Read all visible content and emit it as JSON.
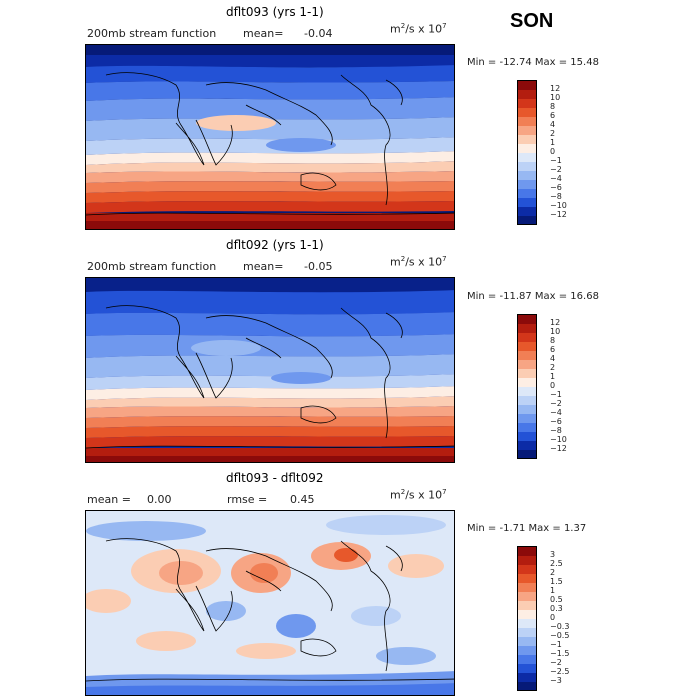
{
  "season": "SON",
  "panels": [
    {
      "title": "dflt093 (yrs 1-1)",
      "left_label": "200mb stream function",
      "mean_label": "mean=",
      "mean_value": "-0.04",
      "unit_base": "m",
      "unit_mid": "/s x 10",
      "unit_exp1": "2",
      "unit_exp2": "7",
      "min_max": "Min = -12.74 Max =   15.48",
      "ticks": [
        "12",
        "10",
        "8",
        "6",
        "4",
        "2",
        "1",
        "0",
        "−1",
        "−2",
        "−4",
        "−6",
        "−8",
        "−10",
        "−12"
      ]
    },
    {
      "title": "dflt092 (yrs 1-1)",
      "left_label": "200mb stream function",
      "mean_label": "mean=",
      "mean_value": "-0.05",
      "unit_base": "m",
      "unit_mid": "/s x 10",
      "unit_exp1": "2",
      "unit_exp2": "7",
      "min_max": "Min = -11.87 Max =   16.68",
      "ticks": [
        "12",
        "10",
        "8",
        "6",
        "4",
        "2",
        "1",
        "0",
        "−1",
        "−2",
        "−4",
        "−6",
        "−8",
        "−10",
        "−12"
      ]
    },
    {
      "title": "dflt093 - dflt092",
      "left_label": "mean =",
      "mean_label": "0.00",
      "rmse_label": "rmse =",
      "rmse_value": "0.45",
      "unit_base": "m",
      "unit_mid": "/s x 10",
      "unit_exp1": "2",
      "unit_exp2": "7",
      "min_max": "Min = -1.71 Max =   1.37",
      "ticks": [
        "3",
        "2.5",
        "2",
        "1.5",
        "1",
        "0.5",
        "0.3",
        "0",
        "−0.3",
        "−0.5",
        "−1",
        "−1.5",
        "−2",
        "−2.5",
        "−3"
      ]
    }
  ],
  "colors": {
    "scale": [
      "#8b0a0a",
      "#b31d0f",
      "#d3361a",
      "#e7582b",
      "#f17f55",
      "#f7a584",
      "#fbcdb3",
      "#fdeee4",
      "#dde8f8",
      "#bcd2f6",
      "#97b8f2",
      "#6f98ee",
      "#4877e8",
      "#2352d6",
      "#0c2ba6",
      "#061a78"
    ]
  }
}
